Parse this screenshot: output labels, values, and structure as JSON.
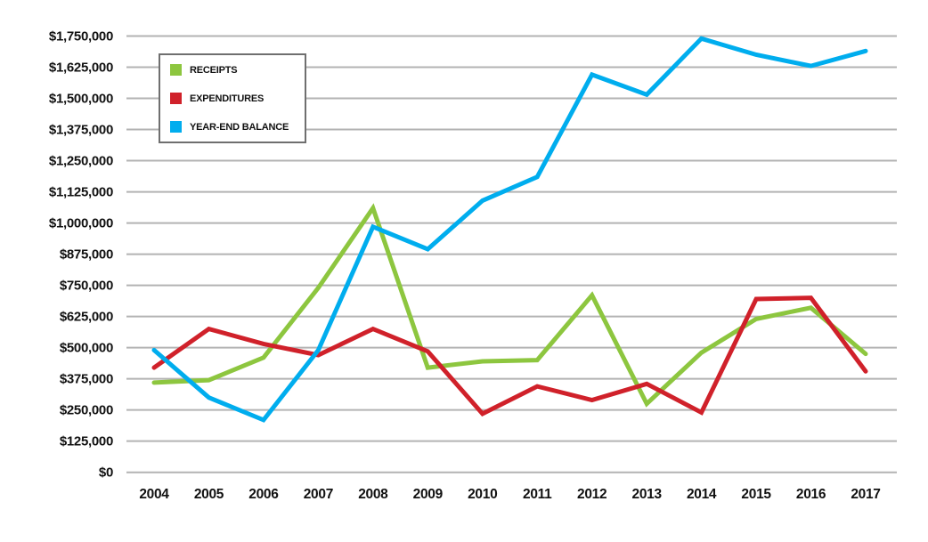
{
  "chart_data": {
    "type": "line",
    "categories": [
      "2004",
      "2005",
      "2006",
      "2007",
      "2008",
      "2009",
      "2010",
      "2011",
      "2012",
      "2013",
      "2014",
      "2015",
      "2016",
      "2017"
    ],
    "series": [
      {
        "name": "RECEIPTS",
        "color": "#8DC63F",
        "values": [
          360000,
          370000,
          460000,
          740000,
          1060000,
          420000,
          445000,
          450000,
          710000,
          275000,
          480000,
          615000,
          660000,
          475000
        ]
      },
      {
        "name": "EXPENDITURES",
        "color": "#D0212A",
        "values": [
          420000,
          575000,
          515000,
          470000,
          575000,
          485000,
          235000,
          345000,
          290000,
          355000,
          240000,
          695000,
          700000,
          405000
        ]
      },
      {
        "name": "YEAR-END BALANCE",
        "color": "#00ADEE",
        "values": [
          490000,
          300000,
          210000,
          490000,
          985000,
          895000,
          1090000,
          1185000,
          1595000,
          1515000,
          1740000,
          1675000,
          1630000,
          1690000
        ]
      }
    ],
    "title": "",
    "xlabel": "",
    "ylabel": "",
    "ylim": [
      0,
      1750000
    ],
    "ytick_step": 125000,
    "y_tick_labels": [
      "$0",
      "$125,000",
      "$250,000",
      "$375,000",
      "$500,000",
      "$625,000",
      "$750,000",
      "$875,000",
      "$1,000,000",
      "$1,125,000",
      "$1,250,000",
      "$1,375,000",
      "$1,500,000",
      "$1,625,000",
      "$1,750,000"
    ],
    "grid": "horizontal",
    "legend_position": "top-left-box"
  }
}
